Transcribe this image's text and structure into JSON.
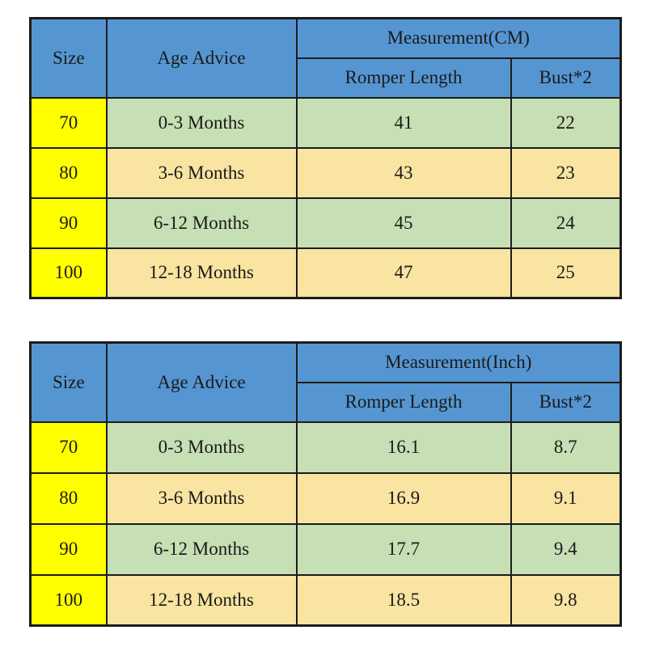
{
  "colors": {
    "header_blue": "#5596d2",
    "size_column_yellow": "#ffff00",
    "row_green": "#c6dfb4",
    "row_tan": "#f9e4a1",
    "border": "#1c1c1c",
    "text": "#1a1a1a",
    "background": "#ffffff"
  },
  "tables": [
    {
      "id": "cm",
      "header": {
        "size": "Size",
        "age": "Age Advice",
        "measurement": "Measurement(CM)",
        "sub1": "Romper Length",
        "sub2": "Bust*2"
      },
      "rows": [
        {
          "size": "70",
          "age": "0-3 Months",
          "romper_length": "41",
          "bust2": "22"
        },
        {
          "size": "80",
          "age": "3-6 Months",
          "romper_length": "43",
          "bust2": "23"
        },
        {
          "size": "90",
          "age": "6-12 Months",
          "romper_length": "45",
          "bust2": "24"
        },
        {
          "size": "100",
          "age": "12-18 Months",
          "romper_length": "47",
          "bust2": "25"
        }
      ]
    },
    {
      "id": "inch",
      "header": {
        "size": "Size",
        "age": "Age Advice",
        "measurement": "Measurement(Inch)",
        "sub1": "Romper Length",
        "sub2": "Bust*2"
      },
      "rows": [
        {
          "size": "70",
          "age": "0-3 Months",
          "romper_length": "16.1",
          "bust2": "8.7"
        },
        {
          "size": "80",
          "age": "3-6 Months",
          "romper_length": "16.9",
          "bust2": "9.1"
        },
        {
          "size": "90",
          "age": "6-12 Months",
          "romper_length": "17.7",
          "bust2": "9.4"
        },
        {
          "size": "100",
          "age": "12-18 Months",
          "romper_length": "18.5",
          "bust2": "9.8"
        }
      ]
    }
  ],
  "chart_data": [
    {
      "type": "table",
      "title": "Measurement(CM)",
      "columns": [
        "Size",
        "Age Advice",
        "Romper Length",
        "Bust*2"
      ],
      "rows": [
        [
          "70",
          "0-3 Months",
          41,
          22
        ],
        [
          "80",
          "3-6 Months",
          43,
          23
        ],
        [
          "90",
          "6-12 Months",
          45,
          24
        ],
        [
          "100",
          "12-18 Months",
          47,
          25
        ]
      ]
    },
    {
      "type": "table",
      "title": "Measurement(Inch)",
      "columns": [
        "Size",
        "Age Advice",
        "Romper Length",
        "Bust*2"
      ],
      "rows": [
        [
          "70",
          "0-3 Months",
          16.1,
          8.7
        ],
        [
          "80",
          "3-6 Months",
          16.9,
          9.1
        ],
        [
          "90",
          "6-12 Months",
          17.7,
          9.4
        ],
        [
          "100",
          "12-18 Months",
          18.5,
          9.8
        ]
      ]
    }
  ]
}
